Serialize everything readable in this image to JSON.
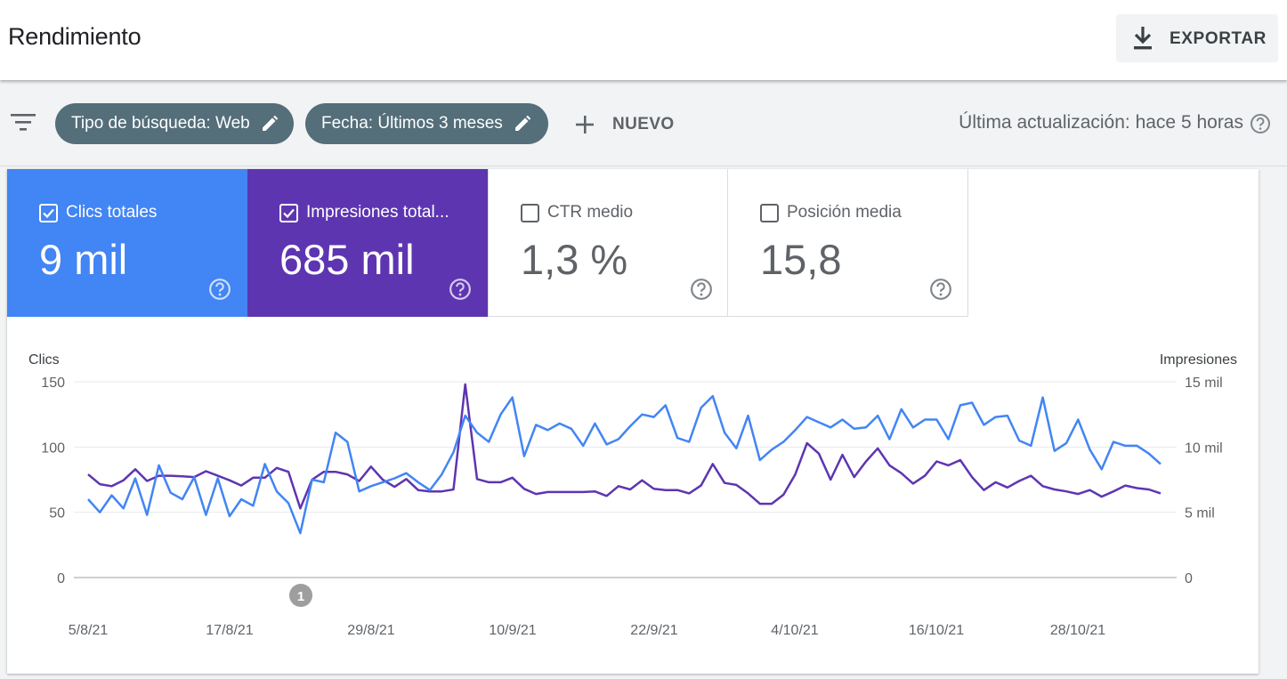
{
  "header": {
    "title": "Rendimiento",
    "export_label": "EXPORTAR"
  },
  "filters": {
    "chip_type": "Tipo de búsqueda: Web",
    "chip_date": "Fecha: Últimos 3 meses",
    "new_label": "NUEVO",
    "last_update": "Última actualización: hace 5 horas"
  },
  "metrics": [
    {
      "label": "Clics totales",
      "value": "9 mil",
      "checked": true,
      "color": "#4285f4"
    },
    {
      "label": "Impresiones total...",
      "value": "685 mil",
      "checked": true,
      "color": "#5e35b1"
    },
    {
      "label": "CTR medio",
      "value": "1,3 %",
      "checked": false,
      "color": "#ffffff"
    },
    {
      "label": "Posición media",
      "value": "15,8",
      "checked": false,
      "color": "#ffffff"
    }
  ],
  "annotation_marker": "1",
  "icons": {
    "filter": "filter-list-icon",
    "edit": "pencil-icon",
    "add": "plus-icon",
    "help": "help-circle-icon",
    "download": "download-icon",
    "checkbox": "checkbox-icon"
  },
  "chart_data": {
    "type": "line",
    "left_axis_label": "Clics",
    "right_axis_label": "Impresiones",
    "left_ticks": [
      "150",
      "100",
      "50",
      "0"
    ],
    "right_ticks": [
      "15 mil",
      "10 mil",
      "5 mil",
      "0"
    ],
    "left_range": [
      0,
      150
    ],
    "right_range": [
      0,
      15000
    ],
    "x_labels": [
      "5/8/21",
      "17/8/21",
      "29/8/21",
      "10/9/21",
      "22/9/21",
      "4/10/21",
      "16/10/21",
      "28/10/21"
    ],
    "grid": true,
    "series": [
      {
        "axis": "left",
        "color": "#4285f4",
        "values": [
          60,
          50,
          63,
          53,
          76,
          48,
          86,
          65,
          60,
          77,
          48,
          76,
          47,
          60,
          55,
          87,
          66,
          57,
          34,
          75,
          73,
          111,
          104,
          66,
          70,
          73,
          76,
          80,
          73,
          67,
          79,
          96,
          124,
          111,
          104,
          125,
          138,
          93,
          117,
          113,
          118,
          114,
          101,
          118,
          102,
          106,
          116,
          125,
          123,
          132,
          107,
          104,
          130,
          139,
          111,
          99,
          124,
          90,
          98,
          104,
          113,
          123,
          119,
          115,
          121,
          114,
          115,
          124,
          106,
          129,
          115,
          121,
          121,
          106,
          132,
          134,
          117,
          123,
          124,
          105,
          101,
          138,
          97,
          103,
          121,
          98,
          83,
          104,
          101,
          101,
          95,
          87
        ],
        "name": ""
      },
      {
        "axis": "right",
        "color": "#5e35b1",
        "values": [
          7900,
          7150,
          7000,
          7450,
          8300,
          7400,
          7800,
          7800,
          7750,
          7700,
          8150,
          7800,
          7450,
          7050,
          7650,
          7650,
          8400,
          8100,
          5300,
          7500,
          8100,
          8100,
          7900,
          7400,
          8500,
          7500,
          6950,
          7550,
          6700,
          6600,
          6600,
          6750,
          14800,
          7550,
          7300,
          7300,
          7650,
          6800,
          6400,
          6550,
          6550,
          6550,
          6550,
          6600,
          6250,
          7000,
          6750,
          7450,
          6800,
          6700,
          6700,
          6450,
          7050,
          8700,
          7250,
          7100,
          6450,
          5650,
          5650,
          6350,
          7900,
          10300,
          9500,
          7500,
          9400,
          7700,
          8900,
          9900,
          8600,
          8000,
          7200,
          7800,
          8900,
          8600,
          9000,
          7700,
          6700,
          7300,
          6900,
          7400,
          7800,
          7000,
          6750,
          6600,
          6400,
          6700,
          6200,
          6600,
          7050,
          6850,
          6750,
          6450
        ],
        "name": ""
      }
    ]
  }
}
